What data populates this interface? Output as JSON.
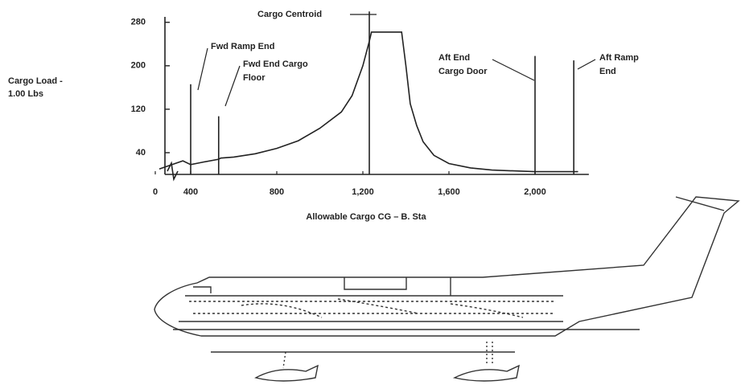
{
  "chart_data": {
    "type": "line",
    "xlabel": "Allowable Cargo CG – B. Sta",
    "ylabel": [
      "Cargo Load -",
      "1.00 Lbs"
    ],
    "x": [
      0,
      300,
      400,
      450,
      530,
      540,
      600,
      700,
      800,
      900,
      1000,
      1100,
      1150,
      1200,
      1230,
      1240,
      1380,
      1400,
      1420,
      1450,
      1480,
      1530,
      1600,
      1700,
      1800,
      2000,
      2200
    ],
    "values": [
      10,
      25,
      18,
      22,
      28,
      30,
      32,
      38,
      48,
      62,
      85,
      115,
      145,
      200,
      245,
      262,
      262,
      200,
      130,
      90,
      60,
      35,
      20,
      12,
      8,
      5,
      5
    ],
    "color": "#222222",
    "xlim": [
      0,
      2250
    ],
    "ylim": [
      0,
      290
    ],
    "xticks": [
      0,
      400,
      800,
      {
        "value": 1200,
        "label": "1,200"
      },
      {
        "value": 1600,
        "label": "1,600"
      },
      {
        "value": 2000,
        "label": "2,000"
      }
    ],
    "yticks": [
      40,
      120,
      200,
      280
    ],
    "annotations": [
      {
        "text": [
          "Fwd Ramp End"
        ],
        "x": 400,
        "y": 166
      },
      {
        "text": [
          "Fwd End Cargo",
          "Floor"
        ],
        "x": 530,
        "y": 107
      },
      {
        "text": [
          "Cargo Centroid"
        ],
        "x": 1230,
        "y": 300
      },
      {
        "text": [
          "Aft End",
          "Cargo Door"
        ],
        "x": 2000,
        "y": 218
      },
      {
        "text": [
          "Aft Ramp",
          "End"
        ],
        "x": 2180,
        "y": 210
      }
    ]
  }
}
